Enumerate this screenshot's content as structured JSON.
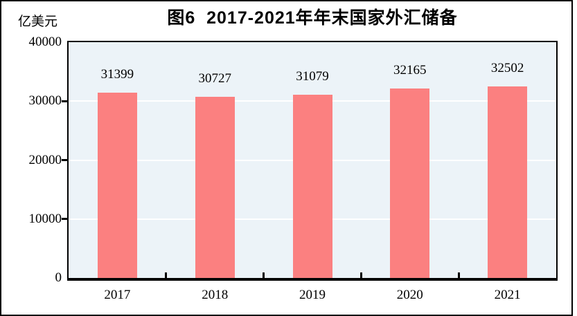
{
  "figure": {
    "title": "图6  2017-2021年年末国家外汇储备",
    "unit_label": "亿美元"
  },
  "chart_data": {
    "type": "bar",
    "title": "图6  2017-2021年年末国家外汇储备",
    "ylabel": "亿美元",
    "xlabel": "",
    "categories": [
      "2017",
      "2018",
      "2019",
      "2020",
      "2021"
    ],
    "values": [
      31399,
      30727,
      31079,
      32165,
      32502
    ],
    "data_labels": [
      "31399",
      "30727",
      "31079",
      "32165",
      "32502"
    ],
    "ylim": [
      0,
      40000
    ],
    "ytick_interval": 10000,
    "ytick_labels": [
      "0",
      "10000",
      "20000",
      "30000",
      "40000"
    ],
    "grid": true,
    "legend": "none",
    "colors": {
      "bar": "#FB8080",
      "plot_bg": "#ECF3F8",
      "gridline": "#FFFFFF",
      "axis": "#000000",
      "text": "#000000"
    }
  }
}
